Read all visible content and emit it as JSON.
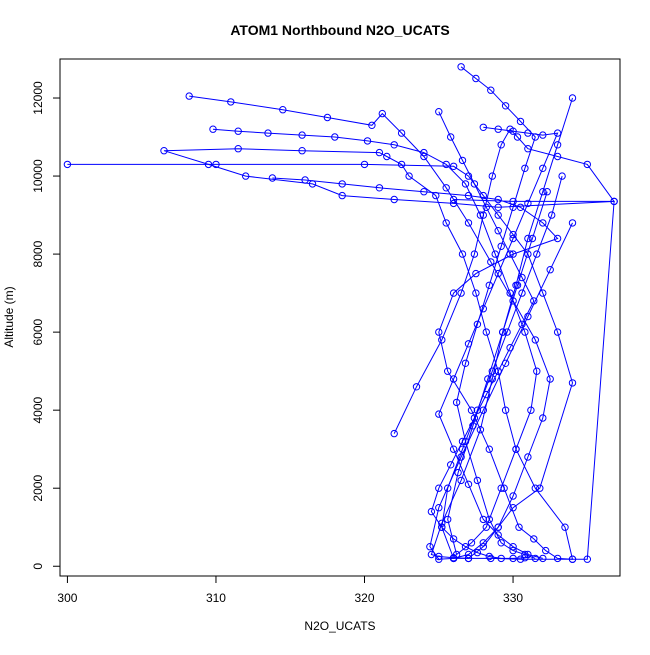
{
  "chart_data": {
    "type": "scatter",
    "mode": "lines+points",
    "title": "ATOM1 Northbound N2O_UCATS",
    "xlabel": "N2O_UCATS",
    "ylabel": "Altitude (m)",
    "xlim": [
      299.5,
      337.2
    ],
    "ylim": [
      -250,
      13000
    ],
    "x_ticks": [
      300,
      310,
      320,
      330
    ],
    "y_ticks": [
      0,
      2000,
      4000,
      6000,
      8000,
      10000,
      12000
    ],
    "x_tick_labels": [
      "300",
      "310",
      "320",
      "330"
    ],
    "y_tick_labels": [
      "0",
      "2000",
      "4000",
      "6000",
      "8000",
      "10000",
      "12000"
    ],
    "grid": false,
    "legend": "none",
    "color": "#0000ff",
    "series": [
      {
        "x": [
          322.0,
          323.5,
          325.2,
          326.5,
          327.4,
          328.0,
          328.6,
          329.2,
          329.8,
          330.3,
          331.0,
          333.0,
          335.0,
          336.8,
          329.0,
          326.0,
          322.0,
          318.5,
          316.5,
          312.0,
          309.5,
          306.5,
          311.5,
          315.8,
          321.0,
          321.5,
          322.5,
          323.0,
          324.8,
          325.5,
          326.6,
          327.5,
          328.2,
          329.0,
          329.5,
          330.2,
          331.5,
          333.5,
          334.0,
          330.5,
          328.5,
          327.0,
          326.0,
          325.0,
          324.5,
          325.2,
          326.5,
          327.8,
          328.6,
          329.3,
          330.2,
          331.0,
          332.0,
          333.0,
          334.0
        ],
        "y": [
          3400,
          4600,
          5800,
          7000,
          8000,
          9000,
          10000,
          10800,
          11200,
          11000,
          10700,
          10500,
          10300,
          9350,
          9200,
          9300,
          9400,
          9500,
          9800,
          10000,
          10300,
          10650,
          10700,
          10650,
          10600,
          10500,
          10300,
          10000,
          9500,
          8800,
          8000,
          7000,
          6000,
          5000,
          4000,
          3000,
          2000,
          1000,
          180,
          180,
          200,
          200,
          220,
          250,
          300,
          1100,
          2200,
          3500,
          4800,
          6000,
          7200,
          8400,
          9600,
          10800,
          12000
        ]
      },
      {
        "x": [
          313.8,
          316.0,
          318.5,
          321.0,
          324.0,
          327.0,
          329.0,
          330.5,
          332.0,
          333.0,
          330.0,
          327.5,
          326.0,
          325.0,
          325.6,
          327.2,
          328.4,
          329.4,
          330.4,
          331.4,
          332.2,
          333.0,
          334.0,
          335.0,
          336.8,
          330.0,
          326.0
        ],
        "y": [
          9950,
          9900,
          9800,
          9700,
          9600,
          9500,
          9400,
          9200,
          8800,
          8400,
          8000,
          7500,
          7000,
          6000,
          5000,
          4000,
          3000,
          2000,
          1000,
          700,
          400,
          200,
          180,
          180,
          9350,
          9350,
          9400
        ]
      },
      {
        "x": [
          300.0,
          310.0,
          320.0,
          326.0,
          327.0,
          328.0,
          329.0,
          330.0,
          331.0,
          332.0,
          333.0,
          334.0,
          331.8,
          330.0,
          329.0,
          328.0,
          327.0,
          326.0,
          325.0,
          324.4,
          325.0,
          326.5,
          328.0,
          329.5,
          331.0,
          332.5,
          334.0
        ],
        "y": [
          10300,
          10300,
          10300,
          10250,
          10000,
          9500,
          9000,
          8500,
          8000,
          7000,
          6000,
          4700,
          2000,
          1500,
          1000,
          600,
          300,
          200,
          180,
          500,
          1500,
          2800,
          4000,
          5200,
          6400,
          7600,
          8800
        ]
      },
      {
        "x": [
          308.2,
          311.0,
          314.5,
          317.5,
          320.5,
          321.2,
          322.5,
          324.0,
          325.5,
          327.0,
          328.5,
          330.0,
          331.5,
          332.5,
          332.0,
          331.0,
          330.0,
          329.0,
          328.0,
          327.0,
          326.0,
          325.2,
          325.6,
          326.6,
          327.6,
          328.6,
          329.6,
          330.6,
          331.6,
          332.6,
          333.3
        ],
        "y": [
          12050,
          11900,
          11700,
          11500,
          11300,
          11600,
          11100,
          10500,
          9700,
          8800,
          7800,
          6800,
          5800,
          4800,
          3800,
          2800,
          1800,
          1000,
          500,
          200,
          200,
          1000,
          2000,
          3000,
          4000,
          5000,
          6000,
          7000,
          8000,
          9000,
          10000
        ]
      },
      {
        "x": [
          309.8,
          311.5,
          313.5,
          315.8,
          318.0,
          320.2,
          322.0,
          324.0,
          325.5,
          326.8,
          327.8,
          328.8,
          329.8,
          330.8,
          331.6,
          331.2,
          330.2,
          329.2,
          328.2,
          327.2,
          326.2,
          325.6,
          326.3,
          327.3,
          328.3,
          329.3,
          330.3,
          331.3,
          332.3
        ],
        "y": [
          11200,
          11150,
          11100,
          11050,
          11000,
          10900,
          10800,
          10600,
          10300,
          9800,
          9000,
          8000,
          7000,
          6000,
          5000,
          4000,
          3000,
          2000,
          1000,
          600,
          300,
          1200,
          2400,
          3600,
          4800,
          6000,
          7200,
          8400,
          9600
        ]
      },
      {
        "x": [
          326.5,
          327.5,
          328.5,
          329.5,
          330.5,
          331.5,
          330.8,
          330.0,
          329.2,
          328.4,
          327.6,
          326.8,
          326.2,
          326.8,
          327.6,
          328.4,
          329.2,
          330.0,
          330.8,
          331.5
        ],
        "y": [
          12800,
          12500,
          12200,
          11800,
          11400,
          11000,
          10200,
          9200,
          8200,
          7200,
          6200,
          5200,
          4200,
          3200,
          2200,
          1200,
          600,
          400,
          300,
          200
        ]
      },
      {
        "x": [
          325.0,
          325.8,
          326.6,
          327.4,
          328.2,
          329.0,
          329.8,
          330.6,
          331.4,
          330.6,
          329.8,
          329.0,
          328.2,
          327.4,
          326.6,
          325.8,
          325.0,
          324.5,
          325.2,
          326.0,
          326.8,
          327.6,
          328.4,
          329.2,
          330.0,
          330.8
        ],
        "y": [
          11650,
          11000,
          10400,
          9800,
          9200,
          8600,
          8000,
          7400,
          6800,
          6200,
          5600,
          5000,
          4400,
          3800,
          3200,
          2600,
          2000,
          1400,
          1000,
          700,
          500,
          350,
          250,
          200,
          200,
          220
        ]
      },
      {
        "x": [
          328.0,
          329.0,
          330.0,
          331.0,
          332.0,
          333.0,
          332.0,
          331.0,
          330.0,
          329.0,
          328.0,
          327.0,
          326.0,
          325.0,
          326.0,
          327.0,
          328.0,
          329.0,
          330.0,
          331.0,
          332.0
        ],
        "y": [
          11250,
          11200,
          11150,
          11100,
          11050,
          11100,
          10200,
          9300,
          8400,
          7500,
          6600,
          5700,
          4800,
          3900,
          3000,
          2100,
          1200,
          800,
          500,
          300,
          200
        ]
      }
    ]
  }
}
